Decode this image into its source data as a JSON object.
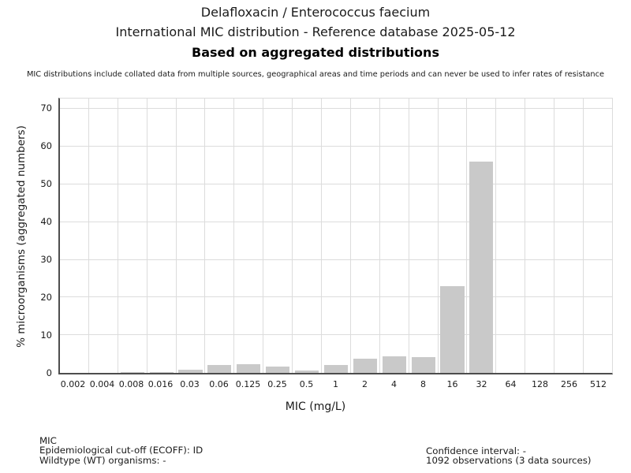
{
  "titles": {
    "line1": "Delafloxacin / Enterococcus faecium",
    "line2": "International MIC distribution - Reference database 2025-05-12",
    "line3": "Based on aggregated distributions",
    "disclaimer": "MIC distributions include collated data from multiple sources, geographical areas and time periods and can never be used to infer rates of resistance"
  },
  "chart_data": {
    "type": "bar",
    "title": "Delafloxacin / Enterococcus faecium — International MIC distribution - Reference database 2025-05-12",
    "categories": [
      "0.002",
      "0.004",
      "0.008",
      "0.016",
      "0.03",
      "0.06",
      "0.125",
      "0.25",
      "0.5",
      "1",
      "2",
      "4",
      "8",
      "16",
      "32",
      "64",
      "128",
      "256",
      "512"
    ],
    "values": [
      0,
      0,
      0.3,
      0.3,
      0.8,
      2.0,
      2.3,
      1.6,
      0.7,
      2.0,
      3.7,
      4.5,
      4.1,
      23,
      56,
      0,
      0,
      0,
      0
    ],
    "xlabel": "MIC (mg/L)",
    "ylabel": "% microorganisms (aggregated numbers)",
    "ylim": [
      0,
      72.8
    ],
    "yticks": [
      0,
      10,
      20,
      30,
      40,
      50,
      60,
      70
    ],
    "grid": true,
    "legend": "none",
    "bar_color": "#c9c9c9",
    "grid_color": "#dcdcdc",
    "axis_color": "#4d4d4d"
  },
  "footer": {
    "left": [
      "MIC",
      "Epidemiological cut-off (ECOFF): ID",
      "Wildtype (WT) organisms:  -"
    ],
    "right": [
      "Confidence interval: -",
      "1092 observations (3 data sources)"
    ]
  }
}
